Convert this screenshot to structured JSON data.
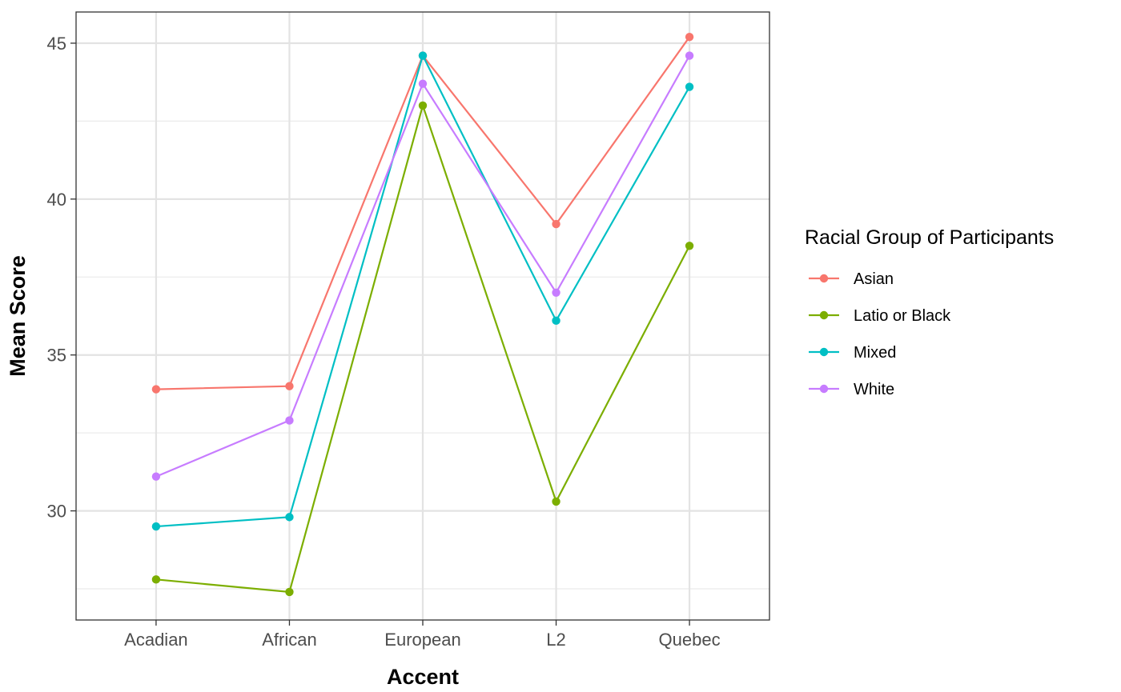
{
  "chart_data": {
    "type": "line",
    "title": "",
    "xlabel": "Accent",
    "ylabel": "Mean Score",
    "categories": [
      "Acadian",
      "African",
      "European",
      "L2",
      "Quebec"
    ],
    "ylim": [
      26.5,
      46.0
    ],
    "yticks": [
      30,
      35,
      40,
      45
    ],
    "grid": true,
    "legend": {
      "title": "Racial Group of Participants",
      "position": "right"
    },
    "series": [
      {
        "name": "Asian",
        "color": "#F8766D",
        "values": [
          33.9,
          34.0,
          44.6,
          39.2,
          45.2
        ]
      },
      {
        "name": "Latio or Black",
        "color": "#7CAE00",
        "values": [
          27.8,
          27.4,
          43.0,
          30.3,
          38.5
        ]
      },
      {
        "name": "Mixed",
        "color": "#00BFC4",
        "values": [
          29.5,
          29.8,
          44.6,
          36.1,
          43.6
        ]
      },
      {
        "name": "White",
        "color": "#C77CFF",
        "values": [
          31.1,
          32.9,
          43.7,
          37.0,
          44.6
        ]
      }
    ]
  }
}
